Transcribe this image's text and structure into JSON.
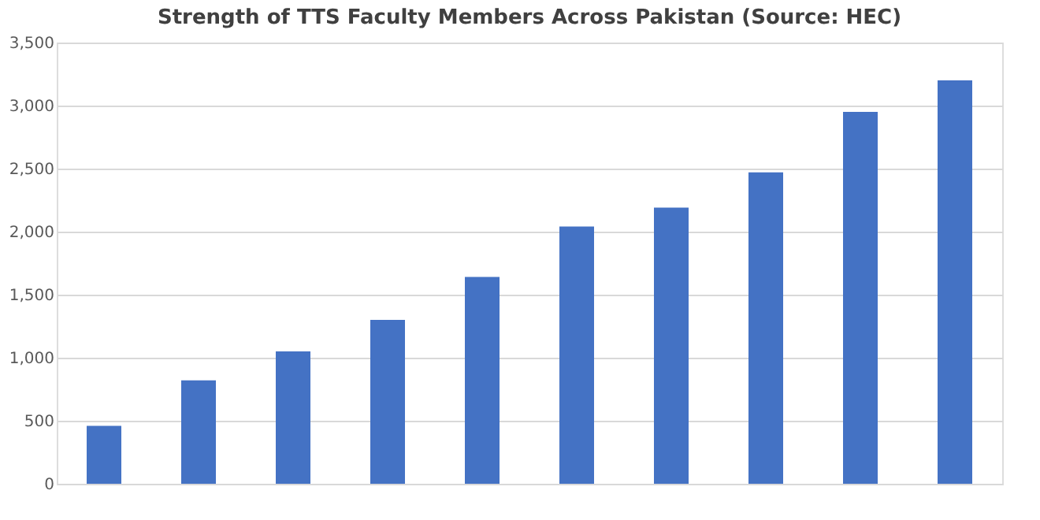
{
  "chart_data": {
    "type": "bar",
    "title": "Strength of TTS Faculty Members Across Pakistan (Source: HEC)",
    "categories": [
      null,
      null,
      null,
      null,
      null,
      null,
      null,
      null,
      null,
      null
    ],
    "values": [
      460,
      820,
      1050,
      1300,
      1640,
      2040,
      2190,
      2470,
      2950,
      3200
    ],
    "color": "#4472c4",
    "ylim": [
      0,
      3500
    ],
    "yticks": [
      0,
      500,
      {
        "value": 1000,
        "label": "1,000"
      },
      {
        "value": 1500,
        "label": "1,500"
      },
      {
        "value": 2000,
        "label": "2,000"
      },
      {
        "value": 2500,
        "label": "2,500"
      },
      {
        "value": 3000,
        "label": "3,000"
      },
      {
        "value": 3500,
        "label": "3,500"
      }
    ],
    "grid": "y"
  }
}
